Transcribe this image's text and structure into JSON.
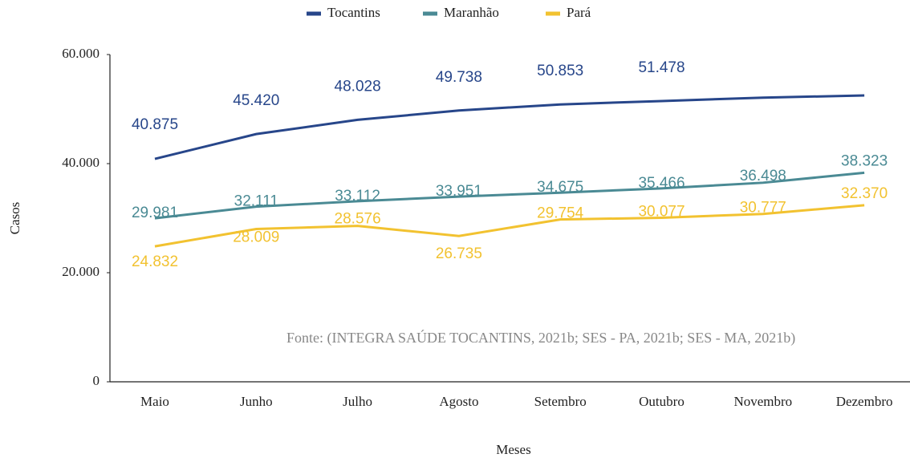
{
  "chart_data": {
    "type": "line",
    "categories": [
      "Maio",
      "Junho",
      "Julho",
      "Agosto",
      "Setembro",
      "Outubro",
      "Novembro",
      "Dezembro"
    ],
    "series": [
      {
        "name": "Tocantins",
        "color": "#27468a",
        "values": [
          40875,
          45420,
          48028,
          49738,
          50853,
          51478,
          52100,
          52500
        ],
        "value_labels": [
          "40.875",
          "45.420",
          "48.028",
          "49.738",
          "50.853",
          "51.478",
          null,
          null
        ]
      },
      {
        "name": "Maranhão",
        "color": "#4a8a94",
        "values": [
          29981,
          32111,
          33112,
          33951,
          34675,
          35466,
          36498,
          38323
        ],
        "value_labels": [
          "29.981",
          "32.111",
          "33.112",
          "33.951",
          "34.675",
          "35.466",
          "36.498",
          "38.323"
        ]
      },
      {
        "name": "Pará",
        "color": "#f2c230",
        "values": [
          24832,
          28009,
          28576,
          26735,
          29754,
          30077,
          30777,
          32370
        ],
        "value_labels": [
          "24.832",
          "28.009",
          "28.576",
          "26.735",
          "29.754",
          "30.077",
          "30.777",
          "32.370"
        ]
      }
    ],
    "ylim": [
      0,
      60000
    ],
    "yticks": [
      0,
      {
        "value": 20000,
        "label": "20.000"
      },
      {
        "value": 40000,
        "label": "40.000"
      },
      {
        "value": 60000,
        "label": "60.000"
      }
    ],
    "x_label": "Meses",
    "y_label": "Casos",
    "annotation": "Fonte: (INTEGRA SAÚDE TOCANTINS, 2021b; SES - PA, 2021b; SES - MA, 2021b)",
    "legend": "top",
    "grid": false
  }
}
